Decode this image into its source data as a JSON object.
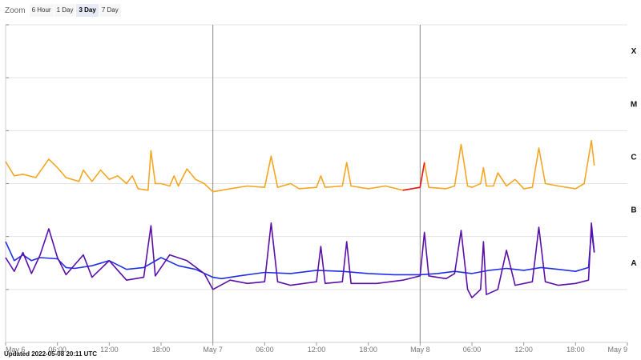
{
  "zoom": {
    "label": "Zoom",
    "buttons": [
      "6 Hour",
      "1 Day",
      "3 Day",
      "7 Day"
    ],
    "active": "3 Day"
  },
  "updated_text": "Updated 2022-05-08 20:11 UTC",
  "chart_data": {
    "type": "line",
    "x_range": [
      "2022-05-06T00:00Z",
      "2022-05-09T00:00Z"
    ],
    "x_ticks": [
      {
        "t": "2022-05-06T00:00Z",
        "label": "May 6"
      },
      {
        "t": "2022-05-06T06:00Z",
        "label": "06:00"
      },
      {
        "t": "2022-05-06T12:00Z",
        "label": "12:00"
      },
      {
        "t": "2022-05-06T18:00Z",
        "label": "18:00"
      },
      {
        "t": "2022-05-07T00:00Z",
        "label": "May 7"
      },
      {
        "t": "2022-05-07T06:00Z",
        "label": "06:00"
      },
      {
        "t": "2022-05-07T12:00Z",
        "label": "12:00"
      },
      {
        "t": "2022-05-07T18:00Z",
        "label": "18:00"
      },
      {
        "t": "2022-05-08T00:00Z",
        "label": "May 8"
      },
      {
        "t": "2022-05-08T06:00Z",
        "label": "06:00"
      },
      {
        "t": "2022-05-08T12:00Z",
        "label": "12:00"
      },
      {
        "t": "2022-05-08T18:00Z",
        "label": "18:00"
      },
      {
        "t": "2022-05-09T00:00Z",
        "label": "May 9"
      }
    ],
    "y_scale": "log",
    "y_range": [
      1e-09,
      0.001
    ],
    "flare_classes": [
      {
        "label": "X",
        "flux": 0.000316
      },
      {
        "label": "M",
        "flux": 3.16e-05
      },
      {
        "label": "C",
        "flux": 3.16e-06
      },
      {
        "label": "B",
        "flux": 3.16e-07
      },
      {
        "label": "A",
        "flux": 3.16e-08
      }
    ],
    "day_separators": [
      "2022-05-07T00:00Z",
      "2022-05-08T00:00Z"
    ],
    "grid": true,
    "series": [
      {
        "color": "#f5a623",
        "highlight_color": "#e8161b",
        "highlight_range": [
          "2022-05-07T21:00Z",
          "2022-05-08T00:30Z"
        ],
        "points": [
          [
            "2022-05-06T00:00Z",
            2.6e-06
          ],
          [
            "2022-05-06T01:00Z",
            1.4e-06
          ],
          [
            "2022-05-06T02:00Z",
            1.5e-06
          ],
          [
            "2022-05-06T03:30Z",
            1.3e-06
          ],
          [
            "2022-05-06T04:00Z",
            1.7e-06
          ],
          [
            "2022-05-06T05:00Z",
            2.9e-06
          ],
          [
            "2022-05-06T06:00Z",
            2e-06
          ],
          [
            "2022-05-06T07:00Z",
            1.3e-06
          ],
          [
            "2022-05-06T08:30Z",
            1.1e-06
          ],
          [
            "2022-05-06T09:00Z",
            1.8e-06
          ],
          [
            "2022-05-06T10:00Z",
            1.1e-06
          ],
          [
            "2022-05-06T11:00Z",
            1.8e-06
          ],
          [
            "2022-05-06T12:00Z",
            1.2e-06
          ],
          [
            "2022-05-06T13:00Z",
            1.4e-06
          ],
          [
            "2022-05-06T14:00Z",
            1e-06
          ],
          [
            "2022-05-06T14:40Z",
            1.4e-06
          ],
          [
            "2022-05-06T15:20Z",
            8e-07
          ],
          [
            "2022-05-06T16:30Z",
            7.5e-07
          ],
          [
            "2022-05-06T16:50Z",
            4.2e-06
          ],
          [
            "2022-05-06T17:20Z",
            1e-06
          ],
          [
            "2022-05-06T18:00Z",
            1e-06
          ],
          [
            "2022-05-06T19:00Z",
            9e-07
          ],
          [
            "2022-05-06T19:30Z",
            1.4e-06
          ],
          [
            "2022-05-06T20:00Z",
            9e-07
          ],
          [
            "2022-05-06T21:00Z",
            1.9e-06
          ],
          [
            "2022-05-06T22:00Z",
            1.2e-06
          ],
          [
            "2022-05-06T23:00Z",
            1e-06
          ],
          [
            "2022-05-07T00:00Z",
            7e-07
          ],
          [
            "2022-05-07T02:00Z",
            8e-07
          ],
          [
            "2022-05-07T04:00Z",
            9e-07
          ],
          [
            "2022-05-07T06:00Z",
            8.5e-07
          ],
          [
            "2022-05-07T06:45Z",
            3.3e-06
          ],
          [
            "2022-05-07T07:30Z",
            8.5e-07
          ],
          [
            "2022-05-07T09:00Z",
            1e-06
          ],
          [
            "2022-05-07T10:00Z",
            8e-07
          ],
          [
            "2022-05-07T12:00Z",
            8.5e-07
          ],
          [
            "2022-05-07T12:30Z",
            1.4e-06
          ],
          [
            "2022-05-07T13:00Z",
            8.5e-07
          ],
          [
            "2022-05-07T15:00Z",
            9e-07
          ],
          [
            "2022-05-07T15:30Z",
            2.5e-06
          ],
          [
            "2022-05-07T16:00Z",
            9e-07
          ],
          [
            "2022-05-07T18:00Z",
            8e-07
          ],
          [
            "2022-05-07T20:00Z",
            9e-07
          ],
          [
            "2022-05-07T22:00Z",
            7.5e-07
          ],
          [
            "2022-05-08T00:00Z",
            8.5e-07
          ],
          [
            "2022-05-08T00:30Z",
            2.5e-06
          ],
          [
            "2022-05-08T01:00Z",
            8.5e-07
          ],
          [
            "2022-05-08T03:00Z",
            8e-07
          ],
          [
            "2022-05-08T04:00Z",
            9e-07
          ],
          [
            "2022-05-08T04:45Z",
            5.5e-06
          ],
          [
            "2022-05-08T05:30Z",
            9e-07
          ],
          [
            "2022-05-08T06:00Z",
            8.5e-07
          ],
          [
            "2022-05-08T07:00Z",
            1e-06
          ],
          [
            "2022-05-08T07:20Z",
            2e-06
          ],
          [
            "2022-05-08T07:40Z",
            9e-07
          ],
          [
            "2022-05-08T08:30Z",
            9e-07
          ],
          [
            "2022-05-08T09:00Z",
            1.6e-06
          ],
          [
            "2022-05-08T10:00Z",
            9e-07
          ],
          [
            "2022-05-08T11:00Z",
            1.2e-06
          ],
          [
            "2022-05-08T12:00Z",
            8e-07
          ],
          [
            "2022-05-08T13:00Z",
            8.5e-07
          ],
          [
            "2022-05-08T13:45Z",
            4.7e-06
          ],
          [
            "2022-05-08T14:30Z",
            1e-06
          ],
          [
            "2022-05-08T16:00Z",
            9e-07
          ],
          [
            "2022-05-08T18:00Z",
            8e-07
          ],
          [
            "2022-05-08T19:00Z",
            1e-06
          ],
          [
            "2022-05-08T19:50Z",
            6.5e-06
          ],
          [
            "2022-05-08T20:10Z",
            2.2e-06
          ]
        ]
      },
      {
        "color": "#1f2fe6",
        "points": [
          [
            "2022-05-06T00:00Z",
            8e-08
          ],
          [
            "2022-05-06T01:00Z",
            3.5e-08
          ],
          [
            "2022-05-06T02:00Z",
            4.5e-08
          ],
          [
            "2022-05-06T03:00Z",
            3.5e-08
          ],
          [
            "2022-05-06T04:00Z",
            4e-08
          ],
          [
            "2022-05-06T06:00Z",
            3.8e-08
          ],
          [
            "2022-05-06T07:00Z",
            2.6e-08
          ],
          [
            "2022-05-06T08:00Z",
            2.5e-08
          ],
          [
            "2022-05-06T10:00Z",
            2.8e-08
          ],
          [
            "2022-05-06T12:00Z",
            3.5e-08
          ],
          [
            "2022-05-06T14:00Z",
            2.4e-08
          ],
          [
            "2022-05-06T16:00Z",
            2.6e-08
          ],
          [
            "2022-05-06T18:00Z",
            4e-08
          ],
          [
            "2022-05-06T20:00Z",
            2.8e-08
          ],
          [
            "2022-05-06T22:00Z",
            2.4e-08
          ],
          [
            "2022-05-07T00:00Z",
            1.7e-08
          ],
          [
            "2022-05-07T01:00Z",
            1.6e-08
          ],
          [
            "2022-05-07T03:00Z",
            1.8e-08
          ],
          [
            "2022-05-07T06:00Z",
            2.1e-08
          ],
          [
            "2022-05-07T09:00Z",
            2e-08
          ],
          [
            "2022-05-07T12:00Z",
            2.3e-08
          ],
          [
            "2022-05-07T15:00Z",
            2.2e-08
          ],
          [
            "2022-05-07T18:00Z",
            2e-08
          ],
          [
            "2022-05-07T21:00Z",
            1.9e-08
          ],
          [
            "2022-05-08T00:00Z",
            1.9e-08
          ],
          [
            "2022-05-08T02:00Z",
            2e-08
          ],
          [
            "2022-05-08T04:00Z",
            2.2e-08
          ],
          [
            "2022-05-08T06:00Z",
            2e-08
          ],
          [
            "2022-05-08T08:00Z",
            2.3e-08
          ],
          [
            "2022-05-08T10:00Z",
            2.5e-08
          ],
          [
            "2022-05-08T12:00Z",
            2.3e-08
          ],
          [
            "2022-05-08T14:00Z",
            2.6e-08
          ],
          [
            "2022-05-08T16:00Z",
            2.4e-08
          ],
          [
            "2022-05-08T18:00Z",
            2.2e-08
          ],
          [
            "2022-05-08T19:30Z",
            2.6e-08
          ],
          [
            "2022-05-08T19:50Z",
            1.3e-07
          ],
          [
            "2022-05-08T20:10Z",
            5e-08
          ]
        ]
      },
      {
        "color": "#5a0fa8",
        "points": [
          [
            "2022-05-06T00:00Z",
            4e-08
          ],
          [
            "2022-05-06T01:00Z",
            2.2e-08
          ],
          [
            "2022-05-06T02:00Z",
            5e-08
          ],
          [
            "2022-05-06T03:00Z",
            2e-08
          ],
          [
            "2022-05-06T04:00Z",
            4.5e-08
          ],
          [
            "2022-05-06T05:00Z",
            1.4e-07
          ],
          [
            "2022-05-06T06:00Z",
            4e-08
          ],
          [
            "2022-05-06T07:00Z",
            1.9e-08
          ],
          [
            "2022-05-06T09:00Z",
            4.5e-08
          ],
          [
            "2022-05-06T10:00Z",
            1.7e-08
          ],
          [
            "2022-05-06T12:00Z",
            3.5e-08
          ],
          [
            "2022-05-06T14:00Z",
            1.5e-08
          ],
          [
            "2022-05-06T16:00Z",
            1.7e-08
          ],
          [
            "2022-05-06T16:50Z",
            1.6e-07
          ],
          [
            "2022-05-06T17:20Z",
            1.8e-08
          ],
          [
            "2022-05-06T19:00Z",
            4.5e-08
          ],
          [
            "2022-05-06T21:00Z",
            3.5e-08
          ],
          [
            "2022-05-06T23:00Z",
            2e-08
          ],
          [
            "2022-05-07T00:00Z",
            1e-08
          ],
          [
            "2022-05-07T02:00Z",
            1.5e-08
          ],
          [
            "2022-05-07T04:00Z",
            1.3e-08
          ],
          [
            "2022-05-07T06:00Z",
            1.4e-08
          ],
          [
            "2022-05-07T06:45Z",
            1.8e-07
          ],
          [
            "2022-05-07T07:30Z",
            1.4e-08
          ],
          [
            "2022-05-07T09:00Z",
            1.2e-08
          ],
          [
            "2022-05-07T12:00Z",
            1.4e-08
          ],
          [
            "2022-05-07T12:30Z",
            6.5e-08
          ],
          [
            "2022-05-07T13:00Z",
            1.3e-08
          ],
          [
            "2022-05-07T15:00Z",
            1.4e-08
          ],
          [
            "2022-05-07T15:30Z",
            8e-08
          ],
          [
            "2022-05-07T16:00Z",
            1.3e-08
          ],
          [
            "2022-05-07T19:00Z",
            1.3e-08
          ],
          [
            "2022-05-07T22:00Z",
            1.5e-08
          ],
          [
            "2022-05-08T00:00Z",
            1.8e-08
          ],
          [
            "2022-05-08T00:30Z",
            1.2e-07
          ],
          [
            "2022-05-08T01:00Z",
            1.8e-08
          ],
          [
            "2022-05-08T03:00Z",
            1.6e-08
          ],
          [
            "2022-05-08T04:00Z",
            2e-08
          ],
          [
            "2022-05-08T04:45Z",
            1.3e-07
          ],
          [
            "2022-05-08T05:30Z",
            1e-08
          ],
          [
            "2022-05-08T06:00Z",
            7e-09
          ],
          [
            "2022-05-08T07:00Z",
            1e-08
          ],
          [
            "2022-05-08T07:20Z",
            8e-08
          ],
          [
            "2022-05-08T07:40Z",
            8e-09
          ],
          [
            "2022-05-08T09:00Z",
            1e-08
          ],
          [
            "2022-05-08T10:00Z",
            5.5e-08
          ],
          [
            "2022-05-08T11:00Z",
            1.2e-08
          ],
          [
            "2022-05-08T13:00Z",
            1.4e-08
          ],
          [
            "2022-05-08T13:45Z",
            1.5e-07
          ],
          [
            "2022-05-08T14:30Z",
            1.4e-08
          ],
          [
            "2022-05-08T16:00Z",
            1.2e-08
          ],
          [
            "2022-05-08T18:00Z",
            1.3e-08
          ],
          [
            "2022-05-08T19:30Z",
            1.5e-08
          ],
          [
            "2022-05-08T19:50Z",
            1.8e-07
          ],
          [
            "2022-05-08T20:10Z",
            5e-08
          ]
        ]
      }
    ]
  }
}
